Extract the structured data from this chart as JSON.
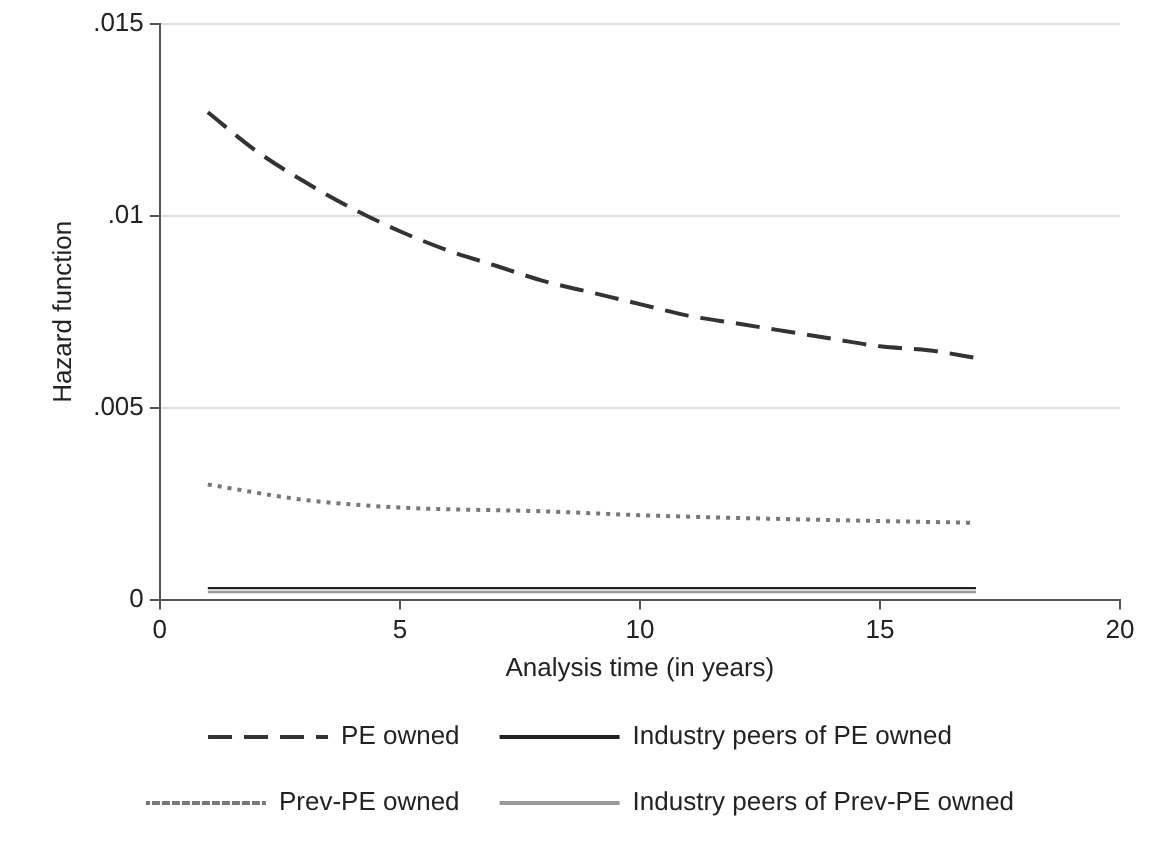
{
  "chart_data": {
    "type": "line",
    "xlabel": "Analysis time (in years)",
    "ylabel": "Hazard function",
    "xlim": [
      0,
      20
    ],
    "xticks": [
      0,
      5,
      10,
      15,
      20
    ],
    "ylim": [
      0,
      0.015
    ],
    "yticks": [
      {
        "value": 0,
        "label": "0"
      },
      {
        "value": 0.005,
        "label": ".005"
      },
      {
        "value": 0.01,
        "label": ".01"
      },
      {
        "value": 0.015,
        "label": ".015"
      }
    ],
    "grid": "y",
    "legend": "bottom",
    "marker": "none",
    "series": [
      {
        "name": "PE owned",
        "color": "#333333",
        "line_style": "dashed",
        "x": [
          1,
          2,
          3,
          4,
          5,
          6,
          7,
          8,
          9,
          10,
          11,
          12,
          13,
          14,
          15,
          16,
          17
        ],
        "values": [
          0.0127,
          0.0117,
          0.0109,
          0.0102,
          0.0096,
          0.0091,
          0.0087,
          0.0083,
          0.008,
          0.0077,
          0.0074,
          0.0072,
          0.007,
          0.0068,
          0.0066,
          0.0065,
          0.0063
        ]
      },
      {
        "name": "Industry peers of PE owned",
        "color": "#222222",
        "line_style": "solid",
        "x": [
          1,
          17
        ],
        "values": [
          0.0003,
          0.0003
        ]
      },
      {
        "name": "Prev-PE owned",
        "color": "#777777",
        "line_style": "dotted",
        "x": [
          1,
          3,
          5,
          8,
          10,
          13,
          17
        ],
        "values": [
          0.003,
          0.0026,
          0.0024,
          0.0023,
          0.0022,
          0.0021,
          0.002
        ]
      },
      {
        "name": "Industry peers of Prev-PE owned",
        "color": "#999999",
        "line_style": "solid",
        "x": [
          1,
          17
        ],
        "values": [
          0.0002,
          0.0002
        ]
      }
    ]
  }
}
